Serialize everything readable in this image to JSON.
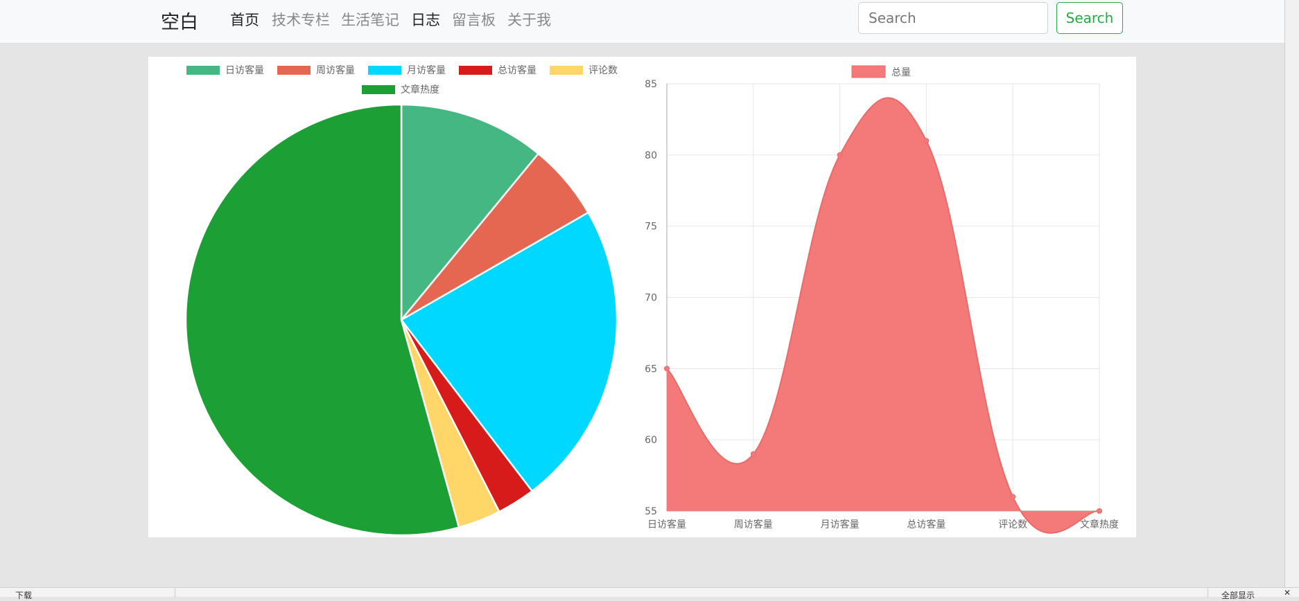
{
  "nav": {
    "brand": "空白",
    "links": [
      {
        "label": "首页",
        "active": true
      },
      {
        "label": "技术专栏",
        "active": false
      },
      {
        "label": "生活笔记",
        "active": false
      },
      {
        "label": "日志",
        "active": true
      },
      {
        "label": "留言板",
        "active": false
      },
      {
        "label": "关于我",
        "active": false
      }
    ],
    "search_placeholder": "Search",
    "search_button": "Search"
  },
  "chart_data": [
    {
      "type": "pie",
      "legend_placement": "top",
      "categories": [
        "日访客量",
        "周访客量",
        "月访客量",
        "总访客量",
        "评论数",
        "文章热度"
      ],
      "values": [
        65,
        34,
        136,
        17,
        19,
        322
      ],
      "colors": [
        "#45b782",
        "#e56752",
        "#00d8ff",
        "#d71b1b",
        "#ffd667",
        "#1ca036"
      ]
    },
    {
      "type": "area",
      "legend_placement": "top",
      "categories": [
        "日访客量",
        "周访客量",
        "月访客量",
        "总访客量",
        "评论数",
        "文章热度"
      ],
      "series": [
        {
          "name": "总量",
          "values": [
            65,
            59,
            80,
            81,
            56,
            55
          ],
          "color": "#f47a7a"
        }
      ],
      "ylim": [
        55,
        85
      ],
      "yticks": [
        "55",
        "60",
        "65",
        "70",
        "75",
        "80",
        "85"
      ],
      "grid": true
    }
  ],
  "taskbar": {
    "left_text": "下载",
    "right_text": "全部显示",
    "close_glyph": "✕"
  }
}
